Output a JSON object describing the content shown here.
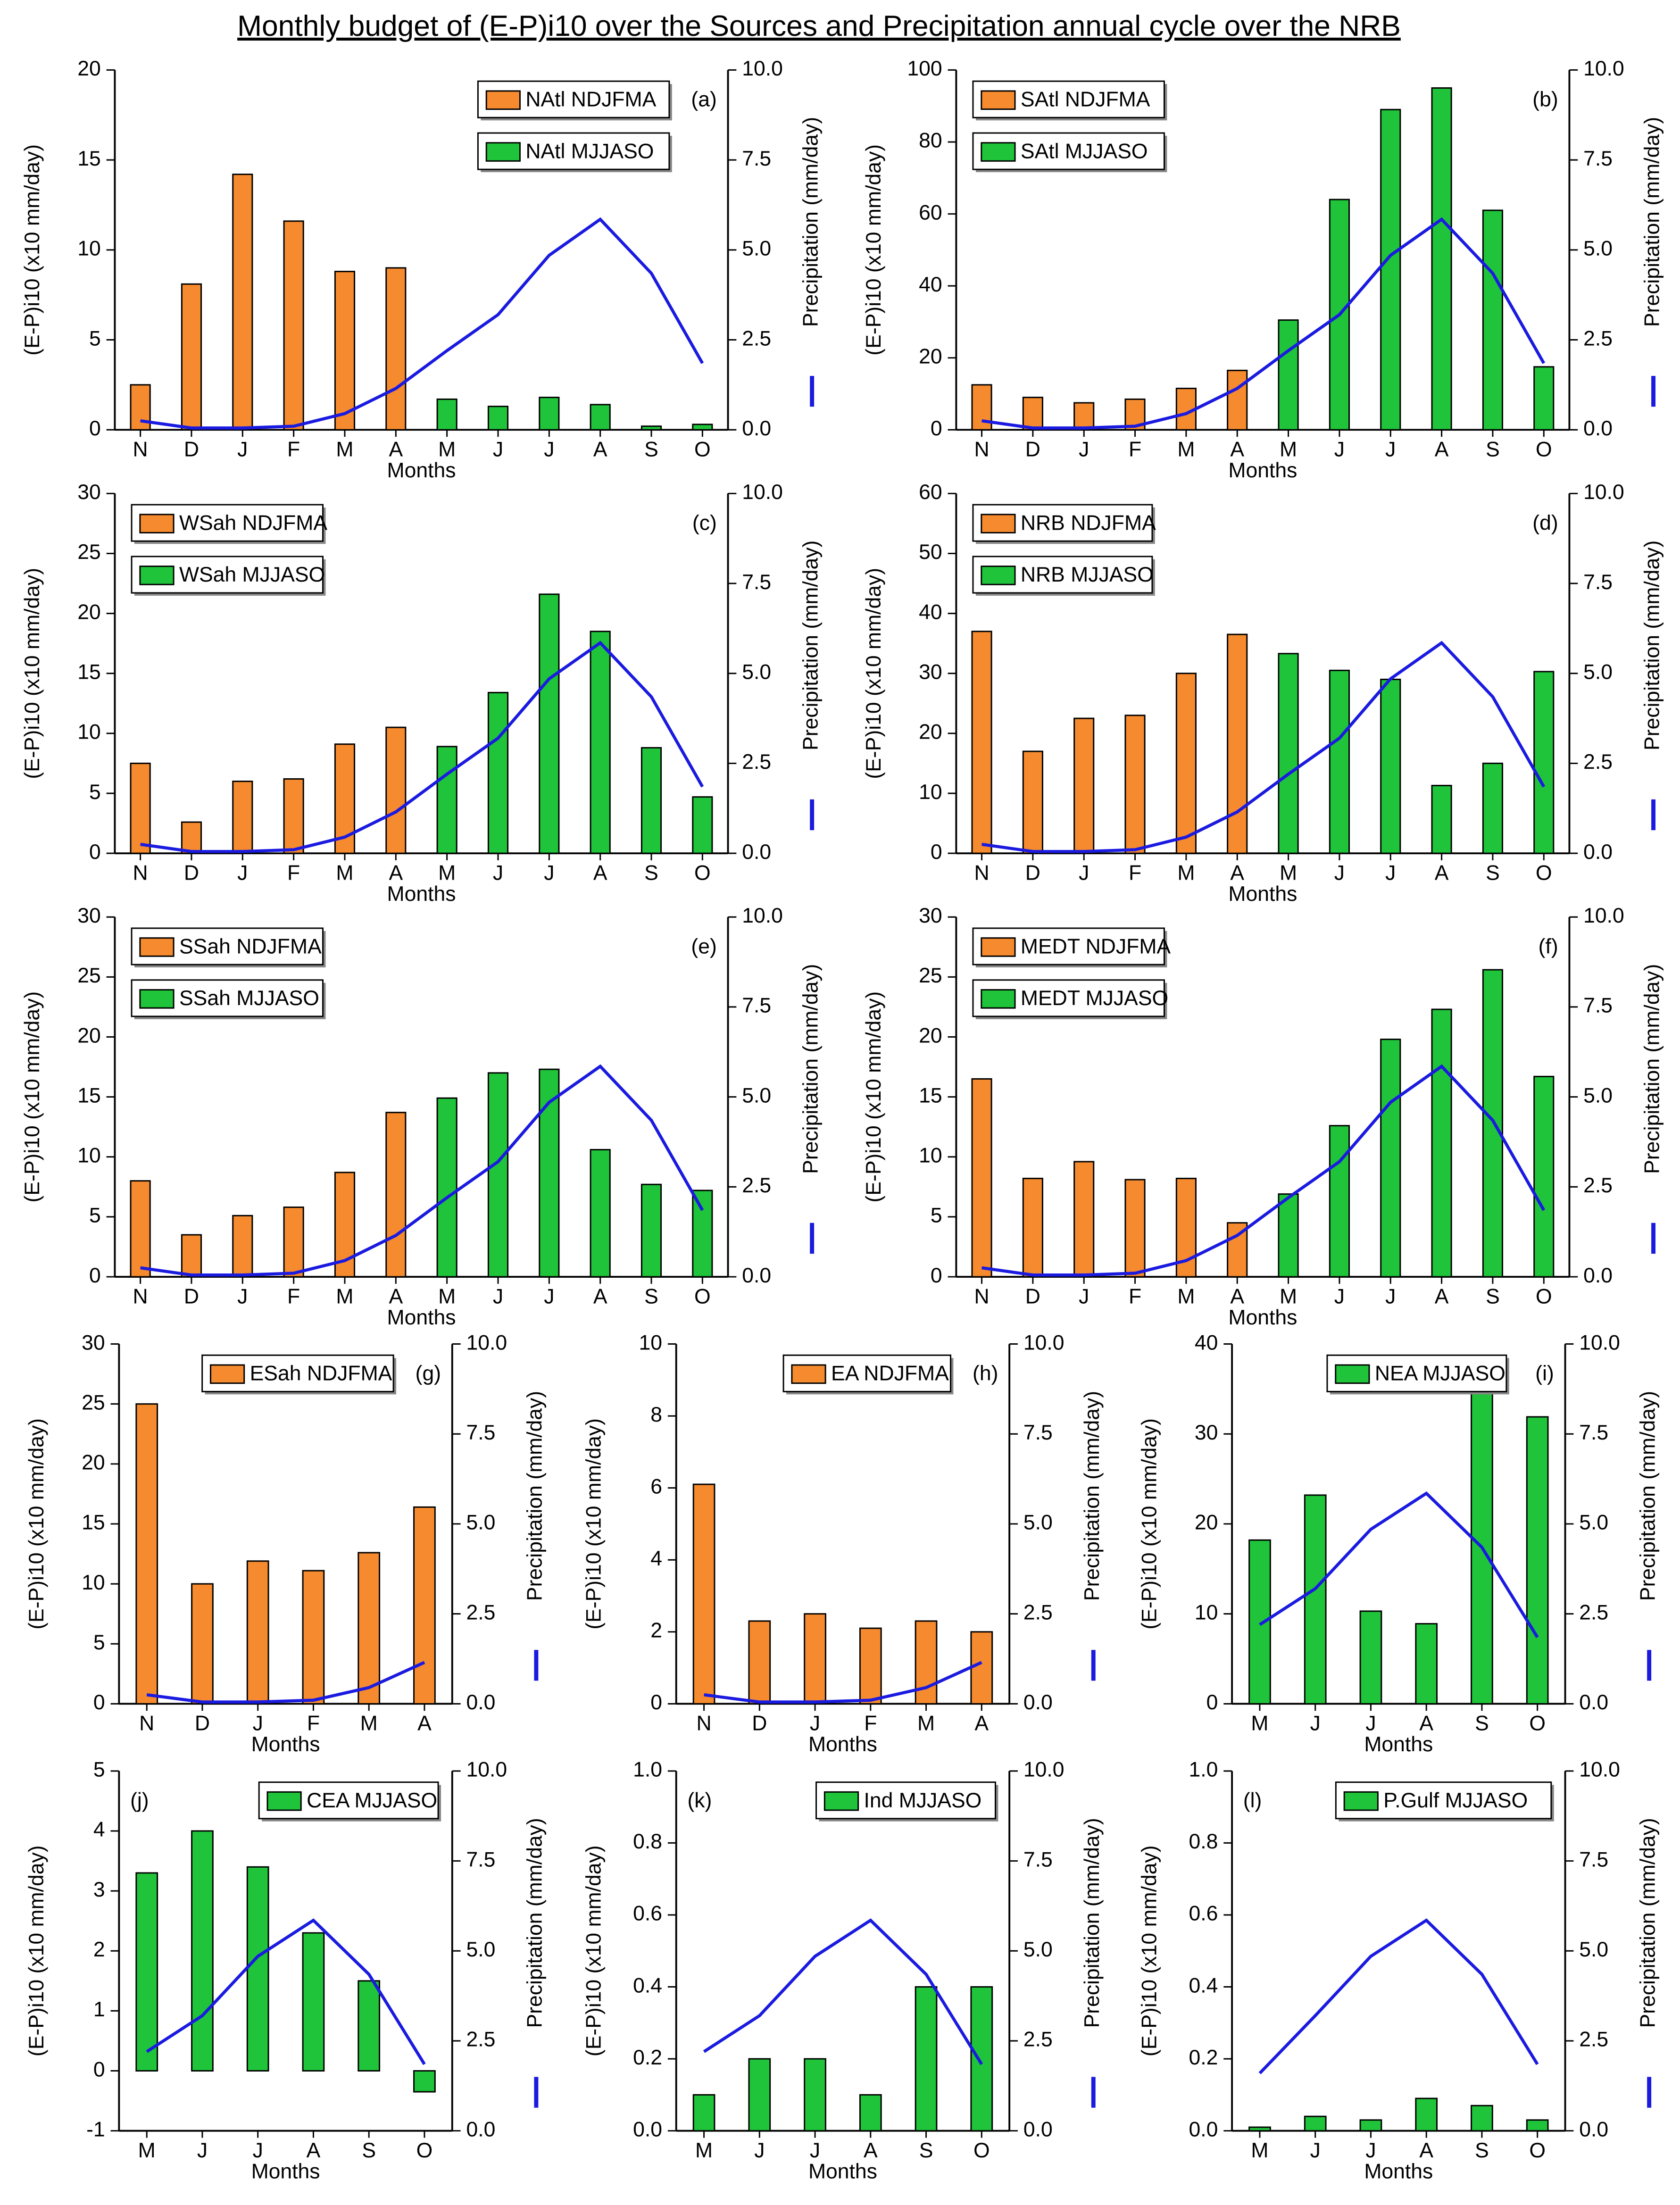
{
  "title": "Monthly budget of (E-P)i10 over the Sources and Precipitation annual cycle over the NRB",
  "chart_data": [
    {
      "type": "bar",
      "title": "(a)",
      "x_label": "Months",
      "y_label": "(E-P)i10 (x10 mm/day)",
      "y2_label": "Precipitation (mm/day)",
      "legend": "upper right",
      "categories": [
        "N",
        "D",
        "J",
        "F",
        "M",
        "A",
        "M",
        "J",
        "J",
        "A",
        "S",
        "O"
      ],
      "ylim": [
        0,
        20
      ],
      "yticks": [
        0,
        5,
        10,
        15,
        20
      ],
      "y2lim": [
        0,
        10
      ],
      "y2ticks": [
        {
          "value": 0,
          "label": "0.0"
        },
        2.5,
        {
          "value": 5,
          "label": "5.0"
        },
        7.5,
        {
          "value": 10,
          "label": "10.0"
        }
      ],
      "series": [
        {
          "name": "NAtl NDJFMA",
          "color": "#f58a2e",
          "values": [
            2.5,
            8.1,
            14.2,
            11.6,
            8.8,
            9.0,
            null,
            null,
            null,
            null,
            null,
            null
          ]
        },
        {
          "name": "NAtl MJJASO",
          "color": "#1fc43a",
          "values": [
            null,
            null,
            null,
            null,
            null,
            null,
            1.7,
            1.3,
            1.8,
            1.4,
            0.2,
            0.3
          ]
        },
        {
          "type": "line",
          "axis": "y2",
          "color": "#1a1ae0",
          "values": [
            0.25,
            0.05,
            0.05,
            0.1,
            0.45,
            1.15,
            2.2,
            3.2,
            4.85,
            5.85,
            4.35,
            1.85
          ]
        }
      ]
    },
    {
      "type": "bar",
      "title": "(b)",
      "x_label": "Months",
      "y_label": "(E-P)i10 (x10 mm/day)",
      "y2_label": "Precipitation (mm/day)",
      "legend": "upper left",
      "categories": [
        "N",
        "D",
        "J",
        "F",
        "M",
        "A",
        "M",
        "J",
        "J",
        "A",
        "S",
        "O"
      ],
      "ylim": [
        0,
        100
      ],
      "yticks": [
        0,
        20,
        40,
        60,
        80,
        100
      ],
      "y2lim": [
        0,
        10
      ],
      "y2ticks": [
        {
          "value": 0,
          "label": "0.0"
        },
        2.5,
        {
          "value": 5,
          "label": "5.0"
        },
        7.5,
        {
          "value": 10,
          "label": "10.0"
        }
      ],
      "series": [
        {
          "name": "SAtl NDJFMA",
          "color": "#f58a2e",
          "values": [
            12.5,
            9,
            7.5,
            8.5,
            11.5,
            16.5,
            null,
            null,
            null,
            null,
            null,
            null
          ]
        },
        {
          "name": "SAtl MJJASO",
          "color": "#1fc43a",
          "values": [
            null,
            null,
            null,
            null,
            null,
            null,
            30.5,
            64,
            89,
            95,
            61,
            17.5
          ]
        },
        {
          "type": "line",
          "axis": "y2",
          "color": "#1a1ae0",
          "values": [
            0.25,
            0.05,
            0.05,
            0.1,
            0.45,
            1.15,
            2.2,
            3.2,
            4.85,
            5.85,
            4.35,
            1.85
          ]
        }
      ]
    },
    {
      "type": "bar",
      "title": "(c)",
      "x_label": "Months",
      "y_label": "(E-P)i10 (x10 mm/day)",
      "y2_label": "Precipitation (mm/day)",
      "legend": "upper left",
      "categories": [
        "N",
        "D",
        "J",
        "F",
        "M",
        "A",
        "M",
        "J",
        "J",
        "A",
        "S",
        "O"
      ],
      "ylim": [
        0,
        30
      ],
      "yticks": [
        0,
        5,
        10,
        15,
        20,
        25,
        30
      ],
      "y2lim": [
        0,
        10
      ],
      "y2ticks": [
        {
          "value": 0,
          "label": "0.0"
        },
        2.5,
        {
          "value": 5,
          "label": "5.0"
        },
        7.5,
        {
          "value": 10,
          "label": "10.0"
        }
      ],
      "series": [
        {
          "name": "WSah NDJFMA",
          "color": "#f58a2e",
          "values": [
            7.5,
            2.6,
            6.0,
            6.2,
            9.1,
            10.5,
            null,
            null,
            null,
            null,
            null,
            null
          ]
        },
        {
          "name": "WSah MJJASO",
          "color": "#1fc43a",
          "values": [
            null,
            null,
            null,
            null,
            null,
            null,
            8.9,
            13.4,
            21.6,
            18.5,
            8.8,
            4.7
          ]
        },
        {
          "type": "line",
          "axis": "y2",
          "color": "#1a1ae0",
          "values": [
            0.25,
            0.05,
            0.05,
            0.1,
            0.45,
            1.15,
            2.2,
            3.2,
            4.85,
            5.85,
            4.35,
            1.85
          ]
        }
      ]
    },
    {
      "type": "bar",
      "title": "(d)",
      "x_label": "Months",
      "y_label": "(E-P)i10 (x10 mm/day)",
      "y2_label": "Precipitation (mm/day)",
      "legend": "upper left",
      "categories": [
        "N",
        "D",
        "J",
        "F",
        "M",
        "A",
        "M",
        "J",
        "J",
        "A",
        "S",
        "O"
      ],
      "ylim": [
        0,
        60
      ],
      "yticks": [
        0,
        10,
        20,
        30,
        40,
        50,
        60
      ],
      "y2lim": [
        0,
        10
      ],
      "y2ticks": [
        {
          "value": 0,
          "label": "0.0"
        },
        2.5,
        {
          "value": 5,
          "label": "5.0"
        },
        7.5,
        {
          "value": 10,
          "label": "10.0"
        }
      ],
      "series": [
        {
          "name": "NRB NDJFMA",
          "color": "#f58a2e",
          "values": [
            37,
            17,
            22.5,
            23,
            30,
            36.5,
            null,
            null,
            null,
            null,
            null,
            null
          ]
        },
        {
          "name": "NRB MJJASO",
          "color": "#1fc43a",
          "values": [
            null,
            null,
            null,
            null,
            null,
            null,
            33.3,
            30.5,
            29,
            11.3,
            15,
            30.3
          ]
        },
        {
          "type": "line",
          "axis": "y2",
          "color": "#1a1ae0",
          "values": [
            0.25,
            0.05,
            0.05,
            0.1,
            0.45,
            1.15,
            2.2,
            3.2,
            4.85,
            5.85,
            4.35,
            1.85
          ]
        }
      ]
    },
    {
      "type": "bar",
      "title": "(e)",
      "x_label": "Months",
      "y_label": "(E-P)i10 (x10 mm/day)",
      "y2_label": "Precipitation (mm/day)",
      "legend": "upper left",
      "categories": [
        "N",
        "D",
        "J",
        "F",
        "M",
        "A",
        "M",
        "J",
        "J",
        "A",
        "S",
        "O"
      ],
      "ylim": [
        0,
        30
      ],
      "yticks": [
        0,
        5,
        10,
        15,
        20,
        25,
        30
      ],
      "y2lim": [
        0,
        10
      ],
      "y2ticks": [
        {
          "value": 0,
          "label": "0.0"
        },
        2.5,
        {
          "value": 5,
          "label": "5.0"
        },
        7.5,
        {
          "value": 10,
          "label": "10.0"
        }
      ],
      "series": [
        {
          "name": "SSah NDJFMA",
          "color": "#f58a2e",
          "values": [
            8.0,
            3.5,
            5.1,
            5.8,
            8.7,
            13.7,
            null,
            null,
            null,
            null,
            null,
            null
          ]
        },
        {
          "name": "SSah MJJASO",
          "color": "#1fc43a",
          "values": [
            null,
            null,
            null,
            null,
            null,
            null,
            14.9,
            17,
            17.3,
            10.6,
            7.7,
            7.2
          ]
        },
        {
          "type": "line",
          "axis": "y2",
          "color": "#1a1ae0",
          "values": [
            0.25,
            0.05,
            0.05,
            0.1,
            0.45,
            1.15,
            2.2,
            3.2,
            4.85,
            5.85,
            4.35,
            1.85
          ]
        }
      ]
    },
    {
      "type": "bar",
      "title": "(f)",
      "x_label": "Months",
      "y_label": "(E-P)i10 (x10 mm/day)",
      "y2_label": "Precipitation (mm/day)",
      "legend": "upper left",
      "categories": [
        "N",
        "D",
        "J",
        "F",
        "M",
        "A",
        "M",
        "J",
        "J",
        "A",
        "S",
        "O"
      ],
      "ylim": [
        0,
        30
      ],
      "yticks": [
        0,
        5,
        10,
        15,
        20,
        25,
        30
      ],
      "y2lim": [
        0,
        10
      ],
      "y2ticks": [
        {
          "value": 0,
          "label": "0.0"
        },
        2.5,
        {
          "value": 5,
          "label": "5.0"
        },
        7.5,
        {
          "value": 10,
          "label": "10.0"
        }
      ],
      "series": [
        {
          "name": "MEDT NDJFMA",
          "color": "#f58a2e",
          "values": [
            16.5,
            8.2,
            9.6,
            8.1,
            8.2,
            4.5,
            null,
            null,
            null,
            null,
            null,
            null
          ]
        },
        {
          "name": "MEDT MJJASO",
          "color": "#1fc43a",
          "values": [
            null,
            null,
            null,
            null,
            null,
            null,
            6.9,
            12.6,
            19.8,
            22.3,
            25.6,
            16.7
          ]
        },
        {
          "type": "line",
          "axis": "y2",
          "color": "#1a1ae0",
          "values": [
            0.25,
            0.05,
            0.05,
            0.1,
            0.45,
            1.15,
            2.2,
            3.2,
            4.85,
            5.85,
            4.35,
            1.85
          ]
        }
      ]
    },
    {
      "type": "bar",
      "title": "(g)",
      "x_label": "Months",
      "y_label": "(E-P)i10 (x10 mm/day)",
      "y2_label": "Precipitation (mm/day)",
      "legend": "upper right",
      "categories": [
        "N",
        "D",
        "J",
        "F",
        "M",
        "A"
      ],
      "ylim": [
        0,
        30
      ],
      "yticks": [
        0,
        5,
        10,
        15,
        20,
        25,
        30
      ],
      "y2lim": [
        0,
        10
      ],
      "y2ticks": [
        {
          "value": 0,
          "label": "0.0"
        },
        2.5,
        {
          "value": 5,
          "label": "5.0"
        },
        7.5,
        {
          "value": 10,
          "label": "10.0"
        }
      ],
      "series": [
        {
          "name": "ESah NDJFMA",
          "color": "#f58a2e",
          "values": [
            25,
            10,
            11.9,
            11.1,
            12.6,
            16.4
          ]
        },
        {
          "type": "line",
          "axis": "y2",
          "color": "#1a1ae0",
          "values": [
            0.25,
            0.05,
            0.05,
            0.1,
            0.45,
            1.15
          ]
        }
      ]
    },
    {
      "type": "bar",
      "title": "(h)",
      "x_label": "Months",
      "y_label": "(E-P)i10 (x10 mm/day)",
      "y2_label": "Precipitation (mm/day)",
      "legend": "upper right",
      "categories": [
        "N",
        "D",
        "J",
        "F",
        "M",
        "A"
      ],
      "ylim": [
        0,
        10
      ],
      "yticks": [
        0,
        2,
        4,
        6,
        8,
        10
      ],
      "y2lim": [
        0,
        10
      ],
      "y2ticks": [
        {
          "value": 0,
          "label": "0.0"
        },
        2.5,
        {
          "value": 5,
          "label": "5.0"
        },
        7.5,
        {
          "value": 10,
          "label": "10.0"
        }
      ],
      "series": [
        {
          "name": "EA NDJFMA",
          "color": "#f58a2e",
          "values": [
            6.1,
            2.3,
            2.5,
            2.1,
            2.3,
            2.0
          ]
        },
        {
          "type": "line",
          "axis": "y2",
          "color": "#1a1ae0",
          "values": [
            0.25,
            0.05,
            0.05,
            0.1,
            0.45,
            1.15
          ]
        }
      ]
    },
    {
      "type": "bar",
      "title": "(i)",
      "x_label": "Months",
      "y_label": "(E-P)i10 (x10 mm/day)",
      "y2_label": "Precipitation (mm/day)",
      "legend": "upper right",
      "categories": [
        "M",
        "J",
        "J",
        "A",
        "S",
        "O"
      ],
      "ylim": [
        0,
        40
      ],
      "yticks": [
        0,
        10,
        20,
        30,
        40
      ],
      "y2lim": [
        0,
        10
      ],
      "y2ticks": [
        {
          "value": 0,
          "label": "0.0"
        },
        2.5,
        {
          "value": 5,
          "label": "5.0"
        },
        7.5,
        {
          "value": 10,
          "label": "10.0"
        }
      ],
      "series": [
        {
          "name": "NEA MJJASO",
          "color": "#1fc43a",
          "values": [
            18.2,
            23.2,
            10.3,
            8.9,
            35,
            31.9
          ]
        },
        {
          "type": "line",
          "axis": "y2",
          "color": "#1a1ae0",
          "values": [
            2.2,
            3.2,
            4.85,
            5.85,
            4.35,
            1.85
          ]
        }
      ]
    },
    {
      "type": "bar",
      "title": "(j)",
      "x_label": "Months",
      "y_label": "(E-P)i10 (x10 mm/day)",
      "y2_label": "Precipitation (mm/day)",
      "legend": "upper right",
      "categories": [
        "M",
        "J",
        "J",
        "A",
        "S",
        "O"
      ],
      "ylim": [
        -1,
        5
      ],
      "yticks": [
        -1,
        0,
        1,
        2,
        3,
        4,
        5
      ],
      "y2lim": [
        0,
        10
      ],
      "y2ticks": [
        {
          "value": 0,
          "label": "0.0"
        },
        2.5,
        {
          "value": 5,
          "label": "5.0"
        },
        7.5,
        {
          "value": 10,
          "label": "10.0"
        }
      ],
      "series": [
        {
          "name": "CEA MJJASO",
          "color": "#1fc43a",
          "values": [
            3.3,
            4.0,
            3.4,
            2.3,
            1.5,
            -0.35
          ]
        },
        {
          "type": "line",
          "axis": "y2",
          "color": "#1a1ae0",
          "values": [
            2.2,
            3.2,
            4.85,
            5.85,
            4.35,
            1.85
          ]
        }
      ]
    },
    {
      "type": "bar",
      "title": "(k)",
      "x_label": "Months",
      "y_label": "(E-P)i10 (x10 mm/day)",
      "y2_label": "Precipitation (mm/day)",
      "legend": "upper right",
      "categories": [
        "M",
        "J",
        "J",
        "A",
        "S",
        "O"
      ],
      "ylim": [
        0,
        1
      ],
      "yticks": [
        {
          "value": 0,
          "label": "0.0"
        },
        0.2,
        0.4,
        0.6,
        0.8,
        {
          "value": 1,
          "label": "1.0"
        }
      ],
      "y2lim": [
        0,
        10
      ],
      "y2ticks": [
        {
          "value": 0,
          "label": "0.0"
        },
        2.5,
        {
          "value": 5,
          "label": "5.0"
        },
        7.5,
        {
          "value": 10,
          "label": "10.0"
        }
      ],
      "series": [
        {
          "name": "Ind MJJASO",
          "color": "#1fc43a",
          "values": [
            0.1,
            0.2,
            0.2,
            0.1,
            0.4,
            0.4
          ]
        },
        {
          "type": "line",
          "axis": "y2",
          "color": "#1a1ae0",
          "values": [
            2.2,
            3.2,
            4.85,
            5.85,
            4.35,
            1.85
          ]
        }
      ]
    },
    {
      "type": "bar",
      "title": "(l)",
      "x_label": "Months",
      "y_label": "(E-P)i10 (x10 mm/day)",
      "y2_label": "Precipitation (mm/day)",
      "legend": "upper right",
      "categories": [
        "M",
        "J",
        "J",
        "A",
        "S",
        "O"
      ],
      "ylim": [
        0,
        1
      ],
      "yticks": [
        {
          "value": 0,
          "label": "0.0"
        },
        0.2,
        0.4,
        0.6,
        0.8,
        {
          "value": 1,
          "label": "1.0"
        }
      ],
      "y2lim": [
        0,
        10
      ],
      "y2ticks": [
        {
          "value": 0,
          "label": "0.0"
        },
        2.5,
        {
          "value": 5,
          "label": "5.0"
        },
        7.5,
        {
          "value": 10,
          "label": "10.0"
        }
      ],
      "series": [
        {
          "name": "P.Gulf MJJASO",
          "color": "#1fc43a",
          "values": [
            0.01,
            0.04,
            0.03,
            0.09,
            0.07,
            0.03
          ]
        },
        {
          "type": "line",
          "axis": "y2",
          "color": "#1a1ae0",
          "values": [
            1.6,
            3.2,
            4.85,
            5.85,
            4.35,
            1.85
          ]
        }
      ]
    }
  ]
}
